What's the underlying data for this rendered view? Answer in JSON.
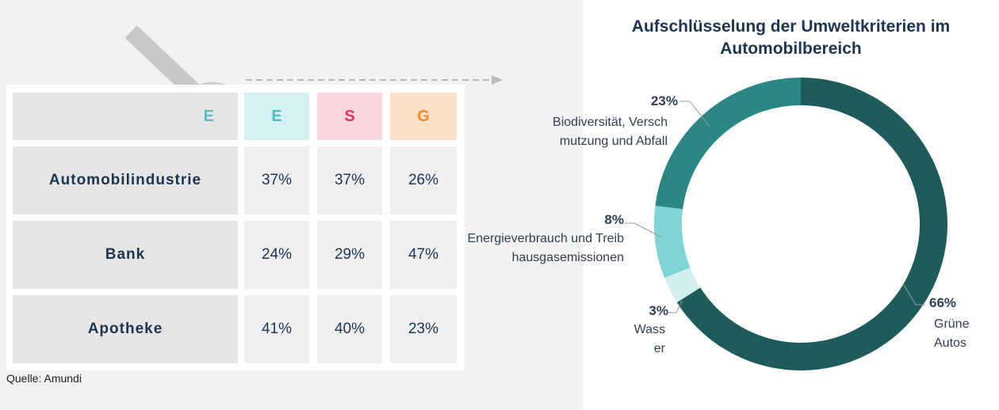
{
  "table": {
    "header": [
      "E",
      "E",
      "S",
      "G"
    ],
    "rows": [
      [
        "Automobilindustrie",
        "37%",
        "37%",
        "26%"
      ],
      [
        "Bank",
        "24%",
        "29%",
        "47%"
      ],
      [
        "Apotheke",
        "41%",
        "40%",
        "23%"
      ]
    ]
  },
  "source": "Quelle: Amundi",
  "chart_data": {
    "type": "pie",
    "title": "Aufschlüsselung der Umweltkriterien im Automobilbereich",
    "categories": [
      "Grüne Autos",
      "Wasser",
      "Energieverbrauch und Treibhausgasemissionen",
      "Biodiversität, Verschmutzung und Abfall"
    ],
    "values": [
      66,
      3,
      8,
      23
    ],
    "value_labels": [
      "66%",
      "3%",
      "8%",
      "23%"
    ],
    "colors": [
      "#1d5c5a",
      "#d4eff0",
      "#7fd4d7",
      "#2a8785"
    ]
  }
}
